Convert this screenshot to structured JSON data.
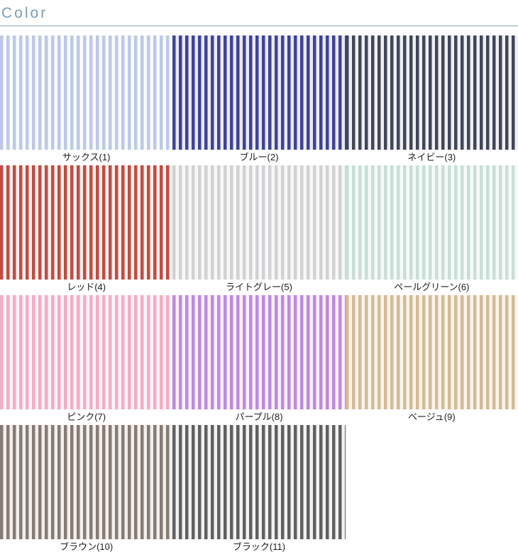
{
  "header": {
    "title": "Color",
    "accent_color": "#7d9cb4",
    "rule_color": "#8ba7ba"
  },
  "swatches": [
    {
      "label": "サックス(1)",
      "stripe_color": "#bec9e7",
      "base_color": "#fafbfe"
    },
    {
      "label": "ブルー(2)",
      "stripe_color": "#3e4397",
      "base_color": "#eaeaf3"
    },
    {
      "label": "ネイビー(3)",
      "stripe_color": "#414659",
      "base_color": "#eef0f2"
    },
    {
      "label": "レッド(4)",
      "stripe_color": "#c04c44",
      "base_color": "#f8f1ee"
    },
    {
      "label": "ライトグレー(5)",
      "stripe_color": "#d2d2d4",
      "base_color": "#f8f8f8"
    },
    {
      "label": "ペールグリーン(6)",
      "stripe_color": "#c9ded7",
      "base_color": "#f5faf8"
    },
    {
      "label": "ピンク(7)",
      "stripe_color": "#f3adc4",
      "base_color": "#fdf4f7"
    },
    {
      "label": "パープル(8)",
      "stripe_color": "#bd8bde",
      "base_color": "#f7f0fb"
    },
    {
      "label": "ベージュ(9)",
      "stripe_color": "#d3bb96",
      "base_color": "#f9f5ed"
    },
    {
      "label": "ブラウン(10)",
      "stripe_color": "#867b75",
      "base_color": "#f3efeb"
    },
    {
      "label": "ブラック(11)",
      "stripe_color": "#606062",
      "base_color": "#f2f2f2"
    }
  ]
}
